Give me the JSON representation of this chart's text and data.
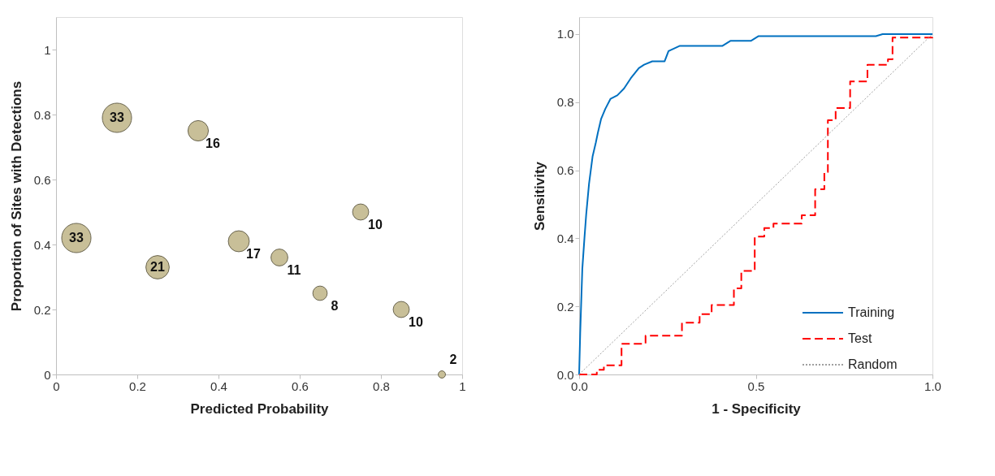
{
  "chart_data": [
    {
      "type": "bubble",
      "xlabel": "Predicted Probability",
      "ylabel": "Proportion of Sites with Detections",
      "x": [
        0.05,
        0.15,
        0.25,
        0.35,
        0.45,
        0.55,
        0.65,
        0.75,
        0.85,
        0.95
      ],
      "series": [
        {
          "color": "#c8bf98",
          "values": [
            0.42,
            0.79,
            0.33,
            0.75,
            0.41,
            0.36,
            0.25,
            0.5,
            0.2,
            0.0
          ],
          "sizes": [
            1,
            1,
            0.636,
            0.485,
            0.515,
            0.333,
            0.242,
            0.303,
            0.303,
            0.061
          ]
        }
      ],
      "annotations": [
        {
          "text": "33",
          "x": 0.05,
          "y": 0.42
        },
        {
          "text": "33",
          "x": 0.15,
          "y": 0.79
        },
        {
          "text": "21",
          "x": 0.25,
          "y": 0.33
        },
        {
          "text": "16",
          "x": 0.35,
          "y": 0.75
        },
        {
          "text": "17",
          "x": 0.45,
          "y": 0.41
        },
        {
          "text": "11",
          "x": 0.55,
          "y": 0.36
        },
        {
          "text": "8",
          "x": 0.65,
          "y": 0.25
        },
        {
          "text": "10",
          "x": 0.75,
          "y": 0.5
        },
        {
          "text": "10",
          "x": 0.85,
          "y": 0.2
        },
        {
          "text": "2",
          "x": 0.95,
          "y": 0.0
        }
      ],
      "xlim": [
        0,
        1
      ],
      "ylim": [
        0,
        1.1
      ],
      "xticks": [
        0,
        0.2,
        0.4,
        0.6,
        0.8,
        1
      ],
      "yticks": [
        0,
        0.2,
        0.4,
        0.6,
        0.8,
        1
      ],
      "grid": false,
      "legend": false
    },
    {
      "type": "line",
      "xlabel": "1 - Specificity",
      "ylabel": "Sensitivity",
      "series": [
        {
          "name": "Training",
          "color": "#0070c0",
          "line_style": "solid",
          "x": [
            0,
            0.003,
            0.009,
            0.015,
            0.02,
            0.028,
            0.038,
            0.047,
            0.053,
            0.062,
            0.074,
            0.089,
            0.108,
            0.127,
            0.146,
            0.169,
            0.184,
            0.207,
            0.242,
            0.253,
            0.284,
            0.405,
            0.428,
            0.486,
            0.508,
            0.84,
            0.859,
            1
          ],
          "values": [
            0,
            0.12,
            0.31,
            0.4,
            0.47,
            0.56,
            0.64,
            0.68,
            0.71,
            0.75,
            0.78,
            0.81,
            0.82,
            0.84,
            0.87,
            0.9,
            0.91,
            0.92,
            0.92,
            0.95,
            0.965,
            0.965,
            0.98,
            0.98,
            0.994,
            0.994,
            1,
            1
          ]
        },
        {
          "name": "Test",
          "type": "step",
          "color": "#ff0000",
          "line_style": "dashed",
          "x": [
            0,
            0.05,
            0.07,
            0.12,
            0.188,
            0.291,
            0.341,
            0.375,
            0.438,
            0.459,
            0.497,
            0.524,
            0.55,
            0.63,
            0.668,
            0.694,
            0.704,
            0.726,
            0.767,
            0.816,
            0.874,
            0.887,
            1
          ],
          "values": [
            0,
            0.014,
            0.027,
            0.09,
            0.114,
            0.152,
            0.177,
            0.204,
            0.253,
            0.304,
            0.405,
            0.43,
            0.443,
            0.468,
            0.544,
            0.595,
            0.747,
            0.783,
            0.861,
            0.91,
            0.926,
            0.99,
            1
          ]
        },
        {
          "name": "Random",
          "color": "#a0a0a0",
          "line_style": "dotted",
          "x": [
            0,
            1
          ],
          "values": [
            0,
            1
          ]
        }
      ],
      "xlim": [
        0,
        1
      ],
      "ylim": [
        0,
        1.05
      ],
      "xticks": [
        {
          "value": 0,
          "label": "0.0"
        },
        {
          "value": 0.5,
          "label": "0.5"
        },
        {
          "value": 1,
          "label": "1.0"
        }
      ],
      "yticks": [
        {
          "value": 0,
          "label": "0.0"
        },
        {
          "value": 0.2,
          "label": "0.2"
        },
        {
          "value": 0.4,
          "label": "0.4"
        },
        {
          "value": 0.6,
          "label": "0.6"
        },
        {
          "value": 0.8,
          "label": "0.8"
        },
        {
          "value": 1,
          "label": "1.0"
        }
      ],
      "grid": false,
      "legend": "bottom right"
    }
  ]
}
